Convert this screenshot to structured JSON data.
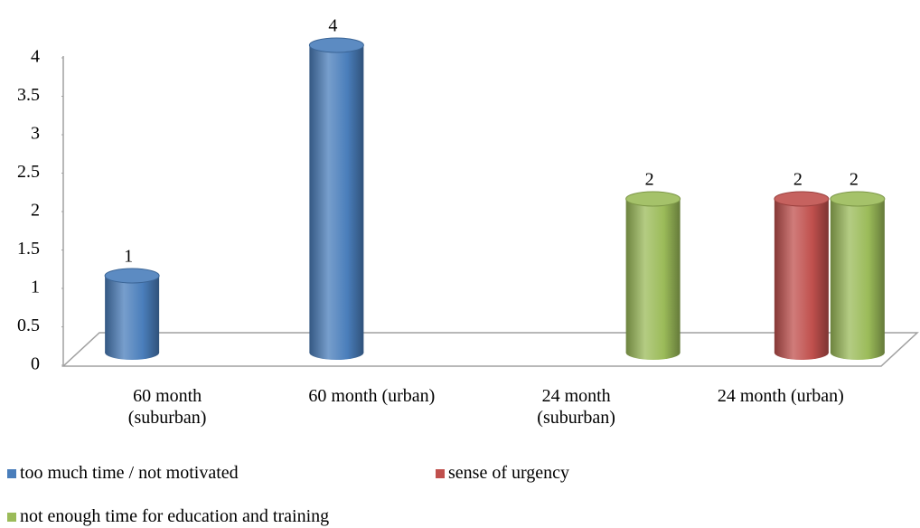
{
  "chart_data": {
    "type": "bar",
    "categories": [
      "60 month (suburban)",
      "60 month (urban)",
      "24 month (suburban)",
      "24 month (urban)"
    ],
    "series": [
      {
        "name": "too much time / not motivated",
        "color": "#4a7ebb",
        "values": [
          1,
          4,
          null,
          null
        ]
      },
      {
        "name": "sense of urgency",
        "color": "#c0504d",
        "values": [
          null,
          null,
          null,
          2
        ]
      },
      {
        "name": "not enough time for education and training",
        "color": "#9bbb59",
        "values": [
          null,
          null,
          2,
          2
        ]
      }
    ],
    "ylim": [
      0,
      4
    ],
    "yticks": [
      0,
      0.5,
      1,
      1.5,
      2,
      2.5,
      3,
      3.5,
      4
    ]
  }
}
